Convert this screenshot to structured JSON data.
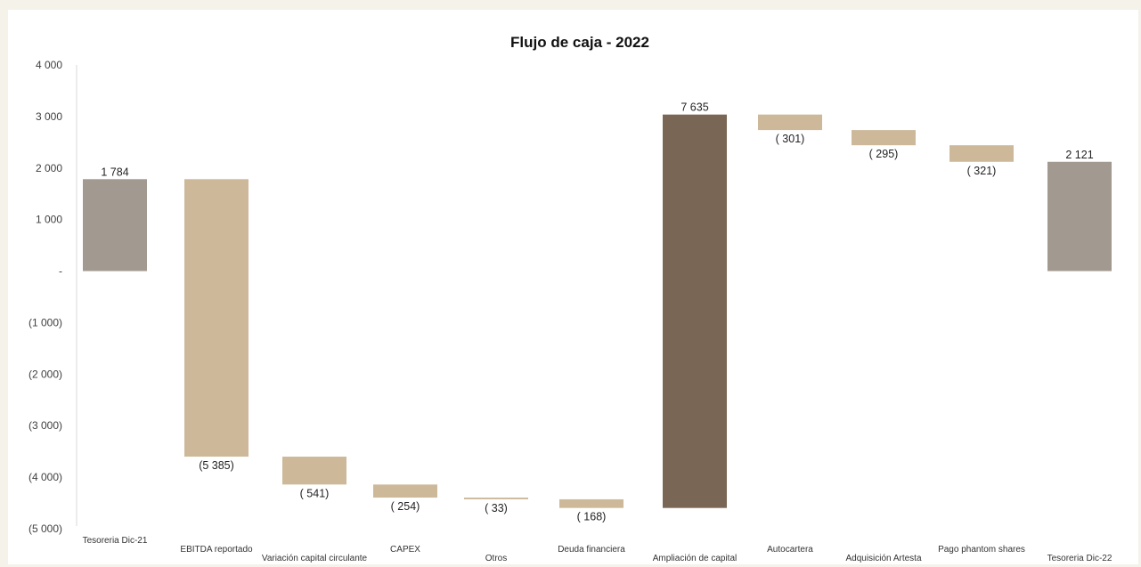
{
  "chart_data": {
    "type": "waterfall",
    "title": "Flujo de caja - 2022",
    "xlabel": "",
    "ylabel": "",
    "ylim": [
      -5000,
      4000
    ],
    "grid": false,
    "yticks": [
      {
        "value": 4000,
        "label": "4 000"
      },
      {
        "value": 3000,
        "label": "3 000"
      },
      {
        "value": 2000,
        "label": "2 000"
      },
      {
        "value": 1000,
        "label": "1 000"
      },
      {
        "value": 0,
        "label": "-"
      },
      {
        "value": -1000,
        "label": "(1 000)"
      },
      {
        "value": -2000,
        "label": "(2 000)"
      },
      {
        "value": -3000,
        "label": "(3 000)"
      },
      {
        "value": -4000,
        "label": "(4 000)"
      },
      {
        "value": -5000,
        "label": "(5 000)"
      }
    ],
    "categories": [
      "Tesoreria Dic-21",
      "EBITDA reportado",
      "Variación capital circulante",
      "CAPEX",
      "Otros",
      "Deuda financiera",
      "Ampliación de capital",
      "Autocartera",
      "Adquisición Artesta",
      "Pago phantom shares",
      "Tesoreria Dic-22"
    ],
    "values": [
      1784,
      -5385,
      -541,
      -254,
      -33,
      -168,
      7635,
      -301,
      -295,
      -321,
      2121
    ],
    "value_labels": [
      "1 784",
      "(5 385)",
      "( 541)",
      "( 254)",
      "( 33)",
      "( 168)",
      "7 635",
      "( 301)",
      "( 295)",
      "( 321)",
      "2 121"
    ],
    "bar_kinds": [
      "total",
      "delta",
      "delta",
      "delta",
      "delta",
      "delta",
      "highlight",
      "delta",
      "delta",
      "delta",
      "total"
    ],
    "colors": {
      "total": "#a29a90",
      "delta": "#cdb99a",
      "highlight": "#7a6654"
    }
  }
}
